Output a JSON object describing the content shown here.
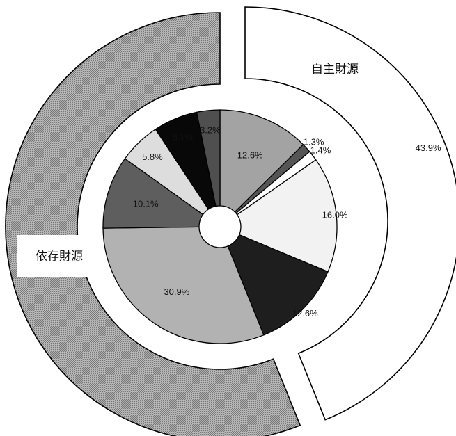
{
  "chart_data": {
    "type": "pie",
    "outer_ring": {
      "slices": [
        {
          "label": "自主財源",
          "value": 43.9,
          "value_label": "43.9%",
          "fill": "#ffffff"
        },
        {
          "label": "依存財源",
          "value": 56.1,
          "value_label": "",
          "fill": "#a7a7a7"
        }
      ]
    },
    "inner_ring": {
      "slices": [
        {
          "value": 12.6,
          "label": "12.6%",
          "fill": "#a3a3a3"
        },
        {
          "value": 1.3,
          "label": "1.3%",
          "fill": "#555555"
        },
        {
          "value": 1.4,
          "label": "1.4%",
          "fill": "#ffffff"
        },
        {
          "value": 16.0,
          "label": "16.0%",
          "fill": "#f2f2f2"
        },
        {
          "value": 12.6,
          "label": "12.6%",
          "fill": "#1e1e1e"
        },
        {
          "value": 30.9,
          "label": "30.9%",
          "fill": "#b2b2b2"
        },
        {
          "value": 10.1,
          "label": "10.1%",
          "fill": "#5e5e5e"
        },
        {
          "value": 5.8,
          "label": "5.8%",
          "fill": "#dddddd"
        },
        {
          "value": 6.1,
          "label": "6.1%",
          "fill": "#080808"
        },
        {
          "value": 3.2,
          "label": "3.2%",
          "fill": "#4f4f4f"
        }
      ]
    }
  }
}
